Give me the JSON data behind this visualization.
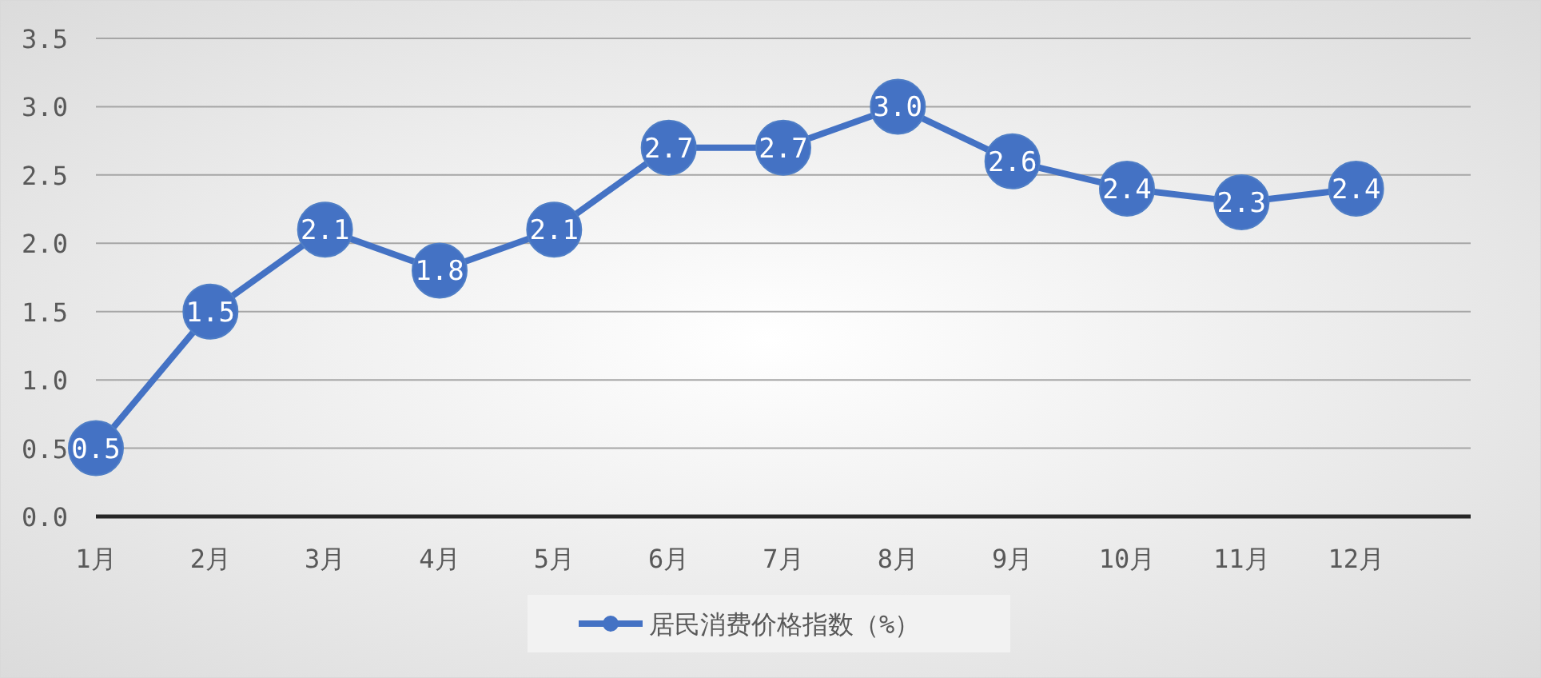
{
  "chart_data": {
    "type": "line",
    "categories": [
      "1月",
      "2月",
      "3月",
      "4月",
      "5月",
      "6月",
      "7月",
      "8月",
      "9月",
      "10月",
      "11月",
      "12月"
    ],
    "series": [
      {
        "name": "居民消费价格指数（%）",
        "color": "#4472c4",
        "values": [
          0.5,
          1.5,
          2.1,
          1.8,
          2.1,
          2.7,
          2.7,
          3.0,
          2.6,
          2.4,
          2.3,
          2.4
        ],
        "value_labels": [
          "0.5",
          "1.5",
          "2.1",
          "1.8",
          "2.1",
          "2.7",
          "2.7",
          "3.0",
          "2.6",
          "2.4",
          "2.3",
          "2.4"
        ]
      }
    ],
    "ylim": [
      0,
      3.5
    ],
    "yticks": [
      {
        "value": 0,
        "label": "0.0"
      },
      {
        "value": 0.5,
        "label": "0.5"
      },
      {
        "value": 1,
        "label": "1.0"
      },
      {
        "value": 1.5,
        "label": "1.5"
      },
      {
        "value": 2,
        "label": "2.0"
      },
      {
        "value": 2.5,
        "label": "2.5"
      },
      {
        "value": 3,
        "label": "3.0"
      },
      {
        "value": 3.5,
        "label": "3.5"
      }
    ],
    "grid": "y",
    "legend": "bottom",
    "marker": "circle",
    "line_style": "solid"
  }
}
